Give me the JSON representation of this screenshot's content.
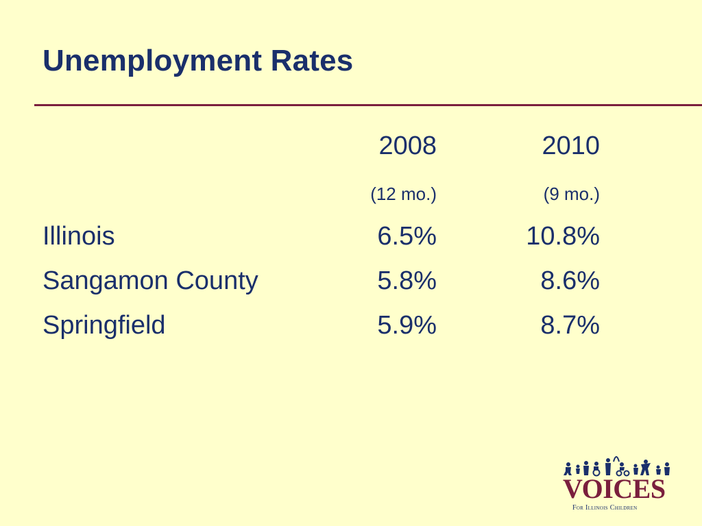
{
  "slide": {
    "title": "Unemployment Rates"
  },
  "table": {
    "columns": [
      {
        "year": "2008",
        "period": "(12 mo.)"
      },
      {
        "year": "2010",
        "period": "(9 mo.)"
      }
    ],
    "rows": [
      {
        "label": "Illinois",
        "values": [
          "6.5%",
          "10.8%"
        ]
      },
      {
        "label": "Sangamon County",
        "values": [
          "5.8%",
          "8.6%"
        ]
      },
      {
        "label": "Springfield",
        "values": [
          "5.9%",
          "8.7%"
        ]
      }
    ]
  },
  "logo": {
    "name": "VOICES",
    "tagline": "For Illinois Children",
    "icon": "children-silhouettes-icon"
  },
  "colors": {
    "background": "#FFFFCC",
    "text": "#1A2F6B",
    "accent": "#7A1F3D"
  }
}
